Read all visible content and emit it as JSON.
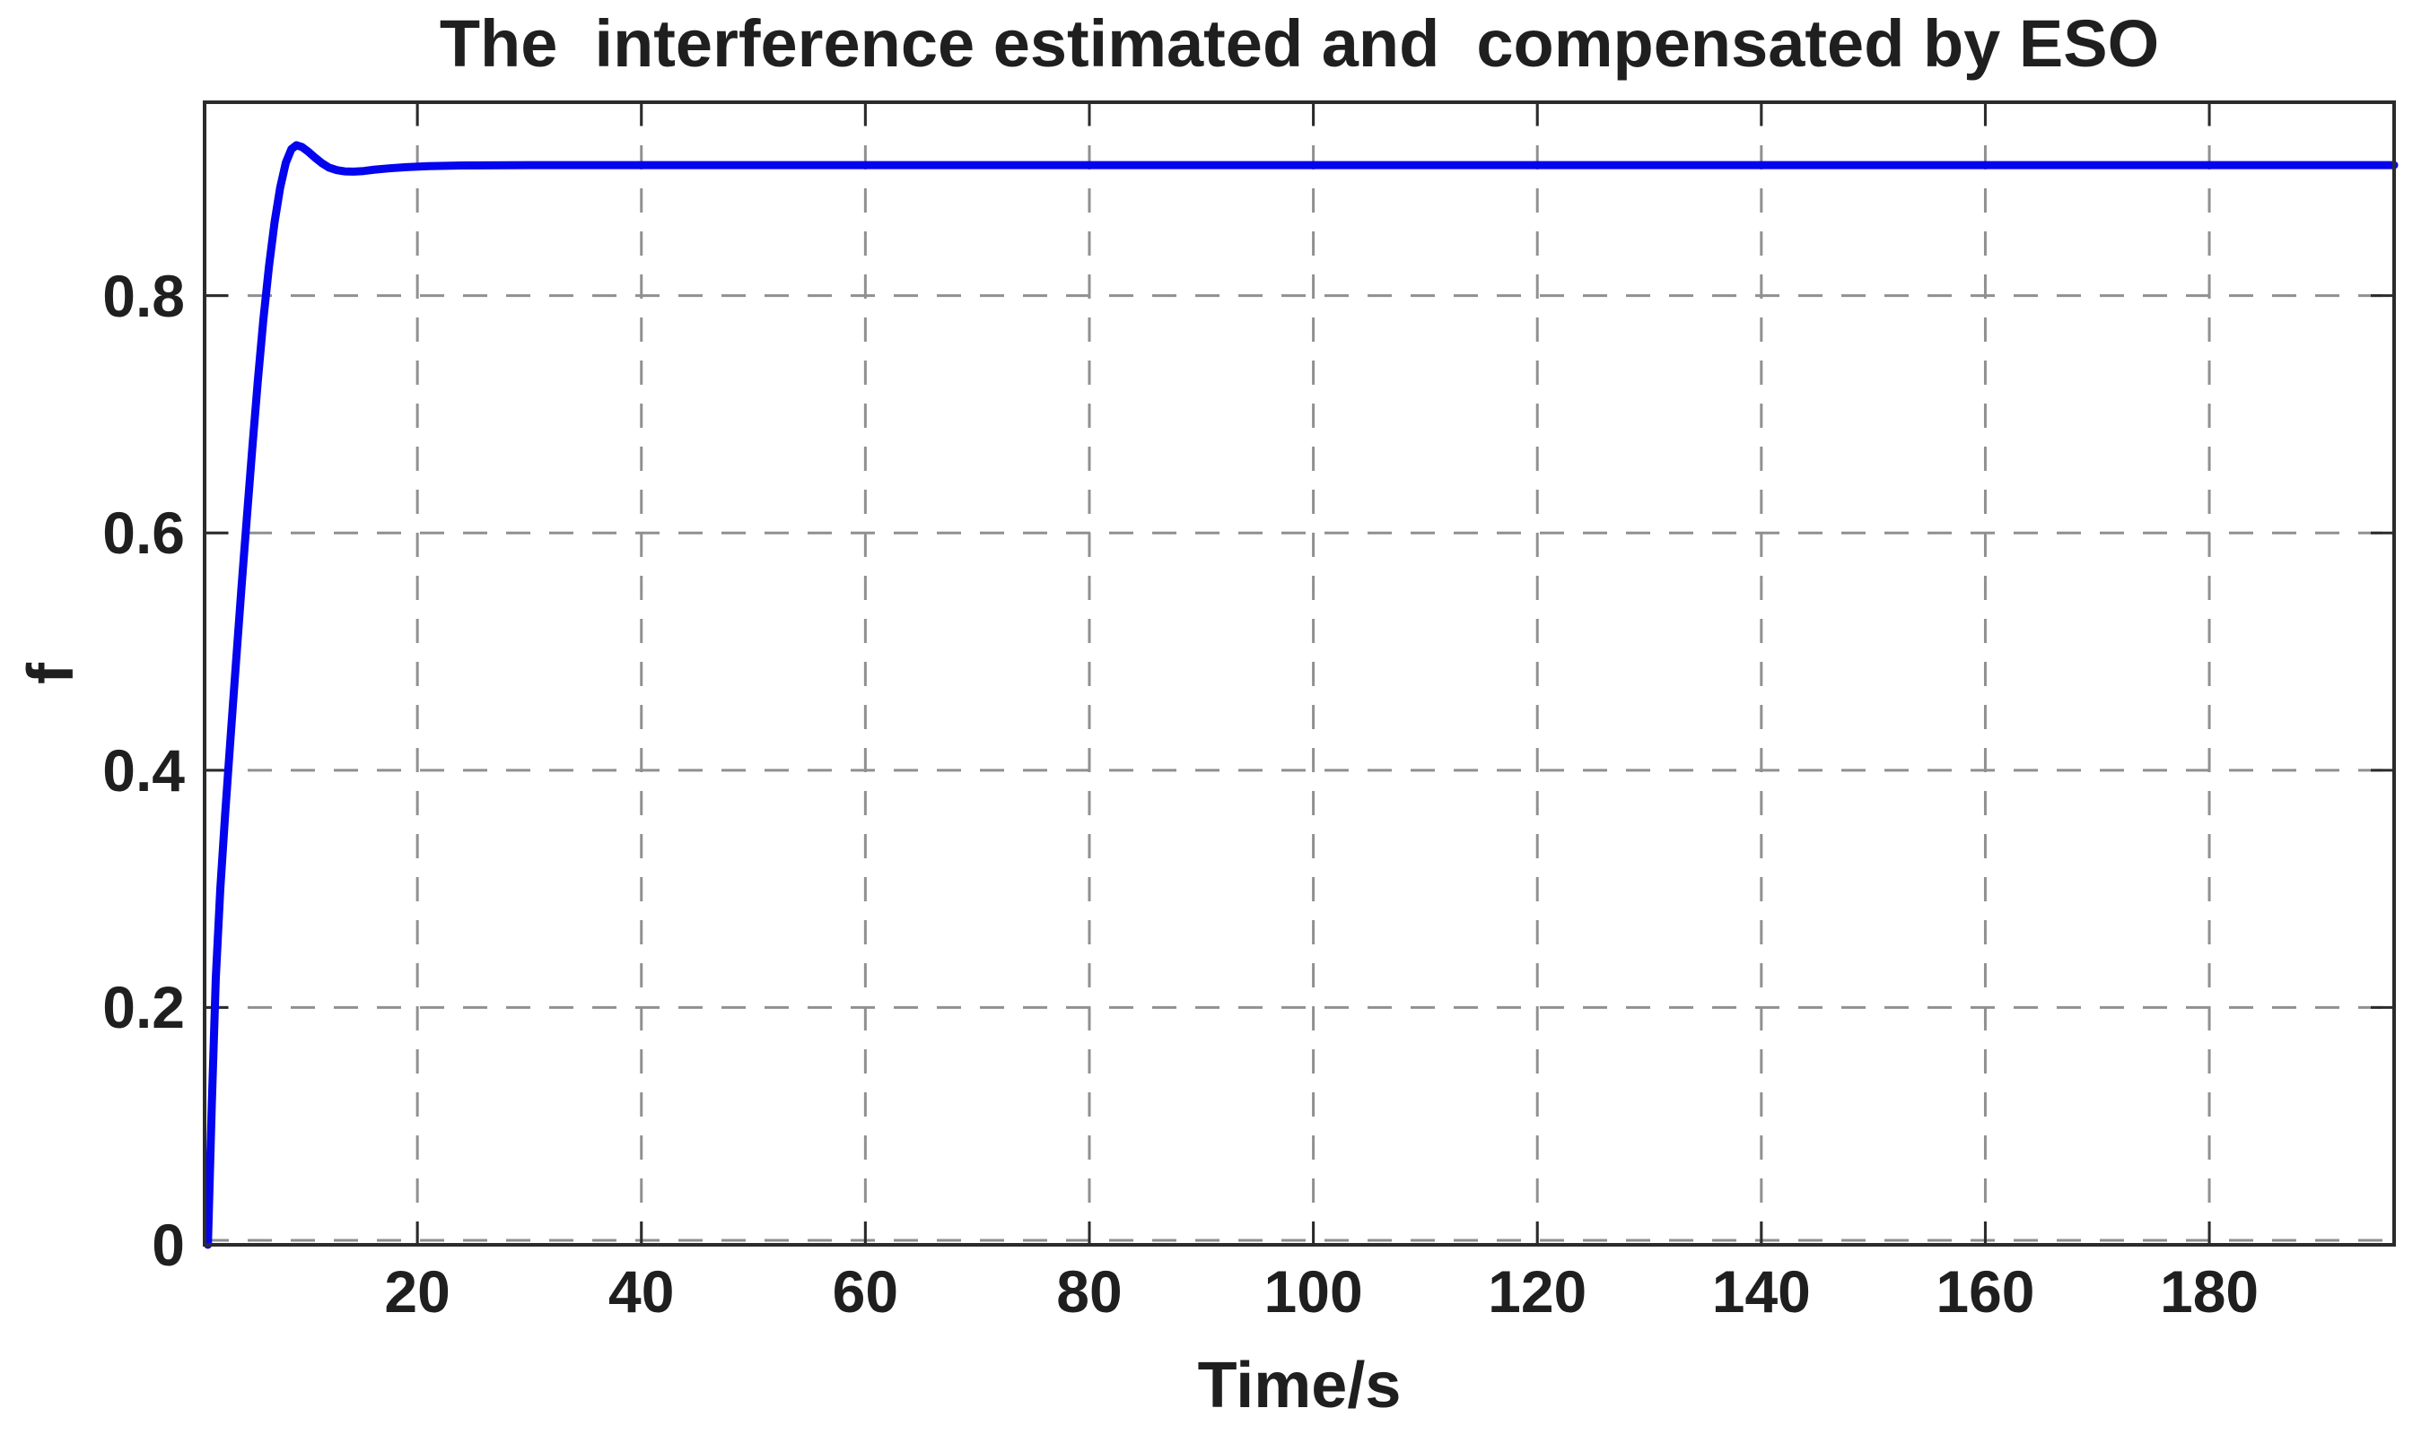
{
  "figure": {
    "background": "#ffffff"
  },
  "chart_data": {
    "type": "line",
    "title": "The  interference estimated and  compensated by ESO",
    "xlabel": "Time/s",
    "ylabel": "f",
    "xlim": [
      1,
      196.5
    ],
    "ylim": [
      0,
      0.963
    ],
    "grid": "on",
    "grid_line_style": "dashed",
    "legend": "none",
    "xticks": [
      {
        "label": "20",
        "value": 20
      },
      {
        "label": "40",
        "value": 40
      },
      {
        "label": "60",
        "value": 60
      },
      {
        "label": "80",
        "value": 80
      },
      {
        "label": "100",
        "value": 100
      },
      {
        "label": "120",
        "value": 120
      },
      {
        "label": "140",
        "value": 140
      },
      {
        "label": "160",
        "value": 160
      },
      {
        "label": "180",
        "value": 180
      }
    ],
    "yticks": [
      {
        "label": "0",
        "value": 0
      },
      {
        "label": "0.2",
        "value": 0.2
      },
      {
        "label": "0.4",
        "value": 0.4
      },
      {
        "label": "0.6",
        "value": 0.6
      },
      {
        "label": "0.8",
        "value": 0.8
      }
    ],
    "colors": {
      "line": "#0404ee",
      "grid": "#909090",
      "axis": "#2b2b2b",
      "text": "#1f1f1f"
    },
    "series": [
      {
        "x": [
          1.3,
          1.65,
          2.0,
          2.4,
          2.85,
          3.3,
          3.8,
          4.3,
          4.75,
          5.25,
          5.75,
          6.25,
          6.75,
          7.25,
          7.75,
          8.25,
          8.75,
          9.2,
          9.7,
          10.3,
          10.9,
          11.5,
          12.1,
          12.8,
          13.5,
          14.3,
          15.2,
          16.2,
          17.5,
          19.0,
          21.0,
          24.0,
          30.0,
          50.0,
          100.0,
          150.0,
          196.5
        ],
        "y": [
          0.0,
          0.12,
          0.225,
          0.3,
          0.365,
          0.425,
          0.49,
          0.555,
          0.61,
          0.67,
          0.728,
          0.78,
          0.825,
          0.862,
          0.891,
          0.912,
          0.9235,
          0.9268,
          0.9253,
          0.921,
          0.916,
          0.9115,
          0.908,
          0.9058,
          0.9047,
          0.9045,
          0.905,
          0.9062,
          0.9073,
          0.9083,
          0.9091,
          0.9097,
          0.91,
          0.91,
          0.91,
          0.91,
          0.91
        ]
      }
    ]
  }
}
